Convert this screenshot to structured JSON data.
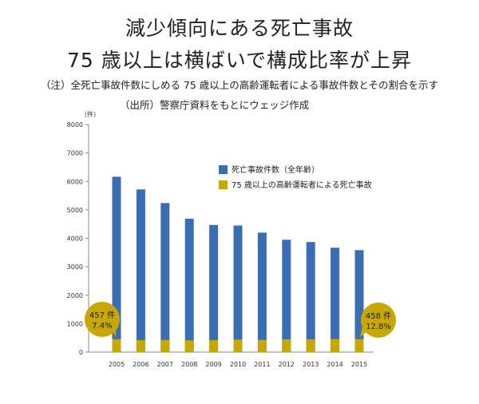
{
  "title_line1": "減少傾向にある死亡事故",
  "title_line2": "75 歳以上は横ばいで構成比率が上昇",
  "note": "（注）全死亡事故件数にしめる 75 歳以上の高齢運転者による事故件数とその割合を示す",
  "source": "（出所）警察庁資料をもとにウェッジ作成",
  "colors": {
    "total": "#3a6eb4",
    "elderly": "#c8a800",
    "bubble": "#c8a800"
  },
  "chart_data": {
    "type": "bar",
    "unit_label": "（件）",
    "categories": [
      "2005",
      "2006",
      "2007",
      "2008",
      "2009",
      "2010",
      "2011",
      "2012",
      "2013",
      "2014",
      "2015"
    ],
    "series": [
      {
        "name": "死亡事故件数（全年齢）",
        "values": [
          6165,
          5720,
          5240,
          4690,
          4470,
          4450,
          4200,
          3950,
          3870,
          3670,
          3585
        ]
      },
      {
        "name": "75 歳以上の高齢運転者による死亡事故",
        "values": [
          457,
          420,
          430,
          415,
          420,
          440,
          430,
          450,
          450,
          460,
          458
        ]
      }
    ],
    "ylim": [
      0,
      8000
    ],
    "yticks": [
      0,
      1000,
      2000,
      3000,
      4000,
      5000,
      6000,
      7000,
      8000
    ],
    "ytick_labels": [
      "0",
      "1000",
      "2000",
      "3000",
      "4000",
      "5000",
      "6000",
      "7000",
      "8000"
    ],
    "annotations": [
      {
        "category": "2005",
        "count": "457 件",
        "share": "7.4%"
      },
      {
        "category": "2015",
        "count": "458 件",
        "share": "12.8%"
      }
    ]
  }
}
